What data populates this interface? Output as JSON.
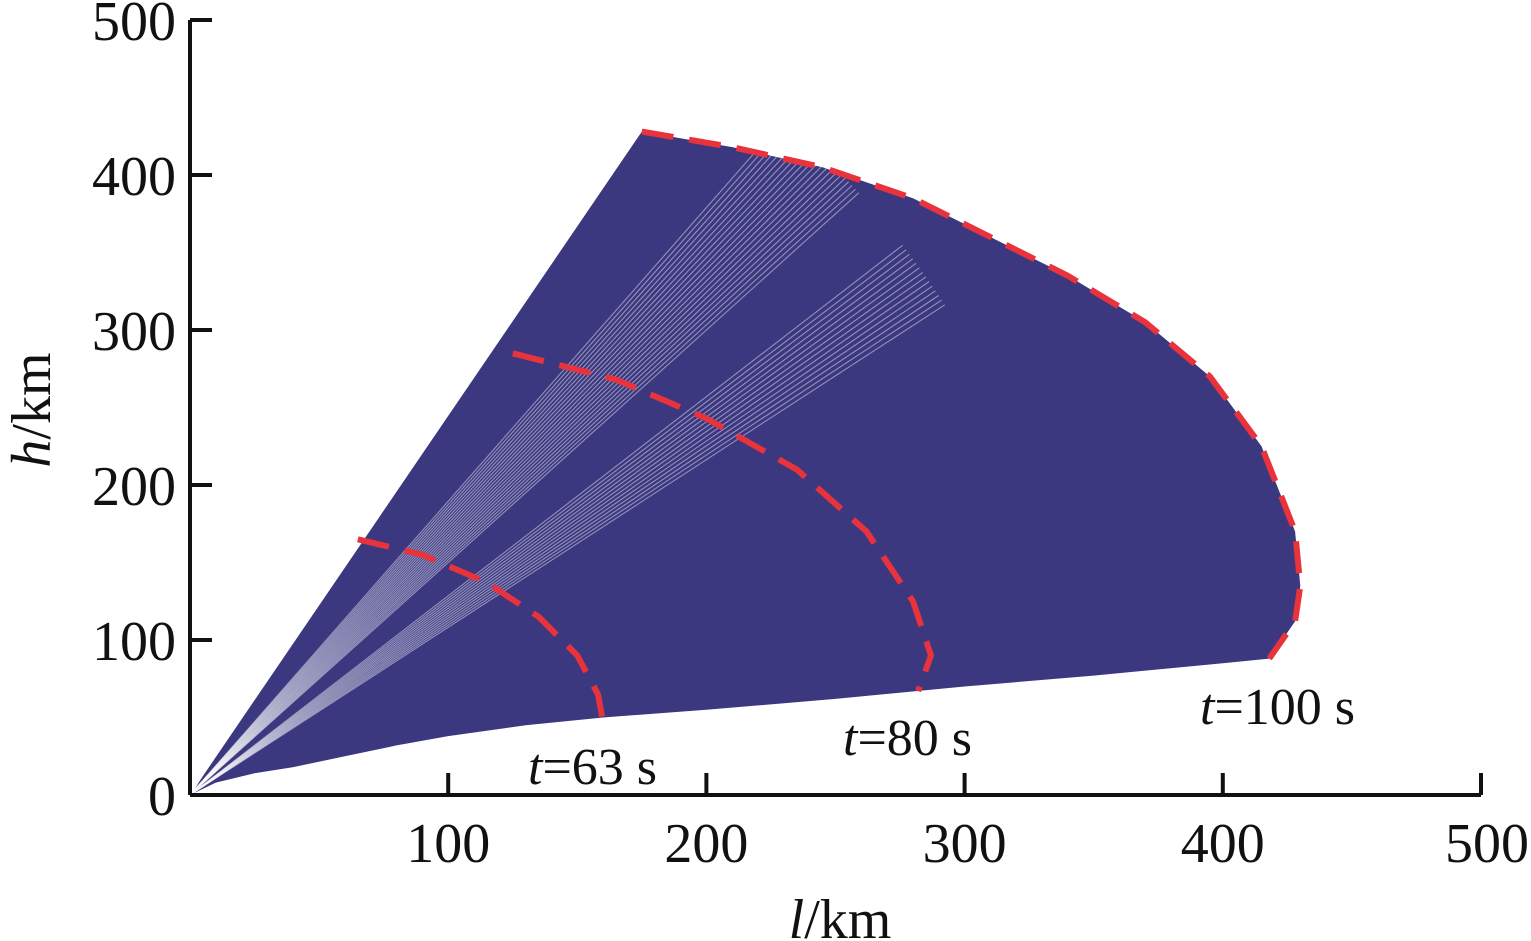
{
  "chart_data": {
    "type": "area",
    "title": "",
    "xlabel": {
      "var": "l",
      "unit": "/km"
    },
    "ylabel": {
      "var": "h",
      "unit": "/km"
    },
    "xlim": [
      0,
      500
    ],
    "ylim": [
      0,
      500
    ],
    "x_ticks": [
      "100",
      "200",
      "300",
      "400",
      "500"
    ],
    "y_ticks": [
      "0",
      "100",
      "200",
      "300",
      "400",
      "500"
    ],
    "grid": false,
    "legend": "none",
    "colors": {
      "region": "#3b3880",
      "stripe": "#ffffff",
      "dashed": "#e8323c",
      "axis": "#111111"
    },
    "reachable_region": {
      "upper_edge": [
        [
          0,
          0
        ],
        [
          175,
          428
        ]
      ],
      "lower_edge": [
        [
          0,
          0
        ],
        [
          10,
          8
        ],
        [
          25,
          14
        ],
        [
          40,
          18
        ],
        [
          60,
          25
        ],
        [
          80,
          32
        ],
        [
          100,
          38
        ],
        [
          130,
          45
        ],
        [
          160,
          50
        ],
        [
          200,
          55
        ],
        [
          250,
          62
        ],
        [
          300,
          70
        ],
        [
          350,
          77
        ],
        [
          400,
          85
        ],
        [
          418,
          88
        ]
      ],
      "outer_boundary": [
        [
          175,
          428
        ],
        [
          210,
          418
        ],
        [
          245,
          405
        ],
        [
          280,
          385
        ],
        [
          310,
          360
        ],
        [
          340,
          335
        ],
        [
          370,
          305
        ],
        [
          395,
          270
        ],
        [
          415,
          225
        ],
        [
          428,
          170
        ],
        [
          430,
          135
        ],
        [
          428,
          112
        ],
        [
          418,
          88
        ]
      ]
    },
    "series": [
      {
        "label": {
          "var": "t",
          "text": "=63 s"
        },
        "values": [
          [
            65,
            165
          ],
          [
            90,
            155
          ],
          [
            115,
            137
          ],
          [
            135,
            115
          ],
          [
            150,
            90
          ],
          [
            158,
            65
          ],
          [
            160,
            47
          ]
        ]
      },
      {
        "label": {
          "var": "t",
          "text": "=80 s"
        },
        "values": [
          [
            125,
            285
          ],
          [
            165,
            268
          ],
          [
            200,
            243
          ],
          [
            235,
            210
          ],
          [
            262,
            170
          ],
          [
            280,
            125
          ],
          [
            287,
            90
          ],
          [
            282,
            67
          ]
        ]
      },
      {
        "label": {
          "var": "t",
          "text": "=100 s"
        },
        "values": [
          [
            175,
            428
          ],
          [
            210,
            418
          ],
          [
            245,
            405
          ],
          [
            280,
            385
          ],
          [
            310,
            360
          ],
          [
            340,
            335
          ],
          [
            370,
            305
          ],
          [
            395,
            270
          ],
          [
            415,
            225
          ],
          [
            428,
            170
          ],
          [
            430,
            135
          ],
          [
            428,
            112
          ],
          [
            418,
            88
          ]
        ]
      }
    ]
  }
}
